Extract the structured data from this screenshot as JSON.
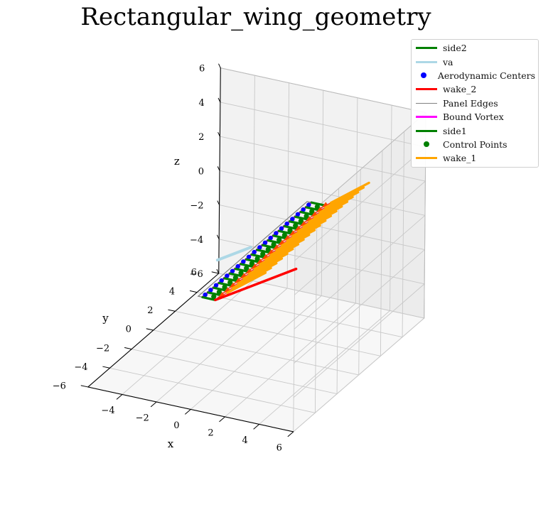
{
  "chart_data": {
    "type": "line3d",
    "title": "Rectangular_wing_geometry",
    "xlabel": "x",
    "ylabel": "y",
    "zlabel": "z",
    "xlim": [
      -6,
      6
    ],
    "ylim": [
      -6,
      6
    ],
    "zlim": [
      -6,
      6
    ],
    "xticks": [
      -4,
      -2,
      0,
      2,
      4,
      6
    ],
    "yticks": [
      -6,
      -4,
      -2,
      0,
      2,
      4,
      6
    ],
    "zticks": [
      -6,
      -4,
      -2,
      0,
      2,
      4,
      6
    ],
    "xtick_labels": [
      "−4",
      "−2",
      "0",
      "2",
      "4",
      "6"
    ],
    "ytick_labels": [
      "−6",
      "−4",
      "−2",
      "0",
      "2",
      "4",
      "6"
    ],
    "ztick_labels": [
      "−6",
      "−4",
      "−2",
      "0",
      "2",
      "4",
      "6"
    ],
    "grid": true,
    "legend_position": "top-right",
    "wing": {
      "span": 10,
      "chord": 1,
      "n_panels": 20
    },
    "legend": [
      {
        "label": "side2",
        "kind": "line",
        "color": "#008000"
      },
      {
        "label": "va",
        "kind": "line",
        "color": "#add8e6"
      },
      {
        "label": "Aerodynamic Centers",
        "kind": "dot",
        "color": "#0000ff"
      },
      {
        "label": "wake_2",
        "kind": "line",
        "color": "#ff0000"
      },
      {
        "label": "Panel Edges",
        "kind": "thin",
        "color": "#808080"
      },
      {
        "label": "Bound Vortex",
        "kind": "line",
        "color": "#ff00ff"
      },
      {
        "label": "side1",
        "kind": "line",
        "color": "#008000"
      },
      {
        "label": "Control Points",
        "kind": "dot",
        "color": "#008000"
      },
      {
        "label": "wake_1",
        "kind": "line",
        "color": "#ffa500"
      }
    ]
  }
}
